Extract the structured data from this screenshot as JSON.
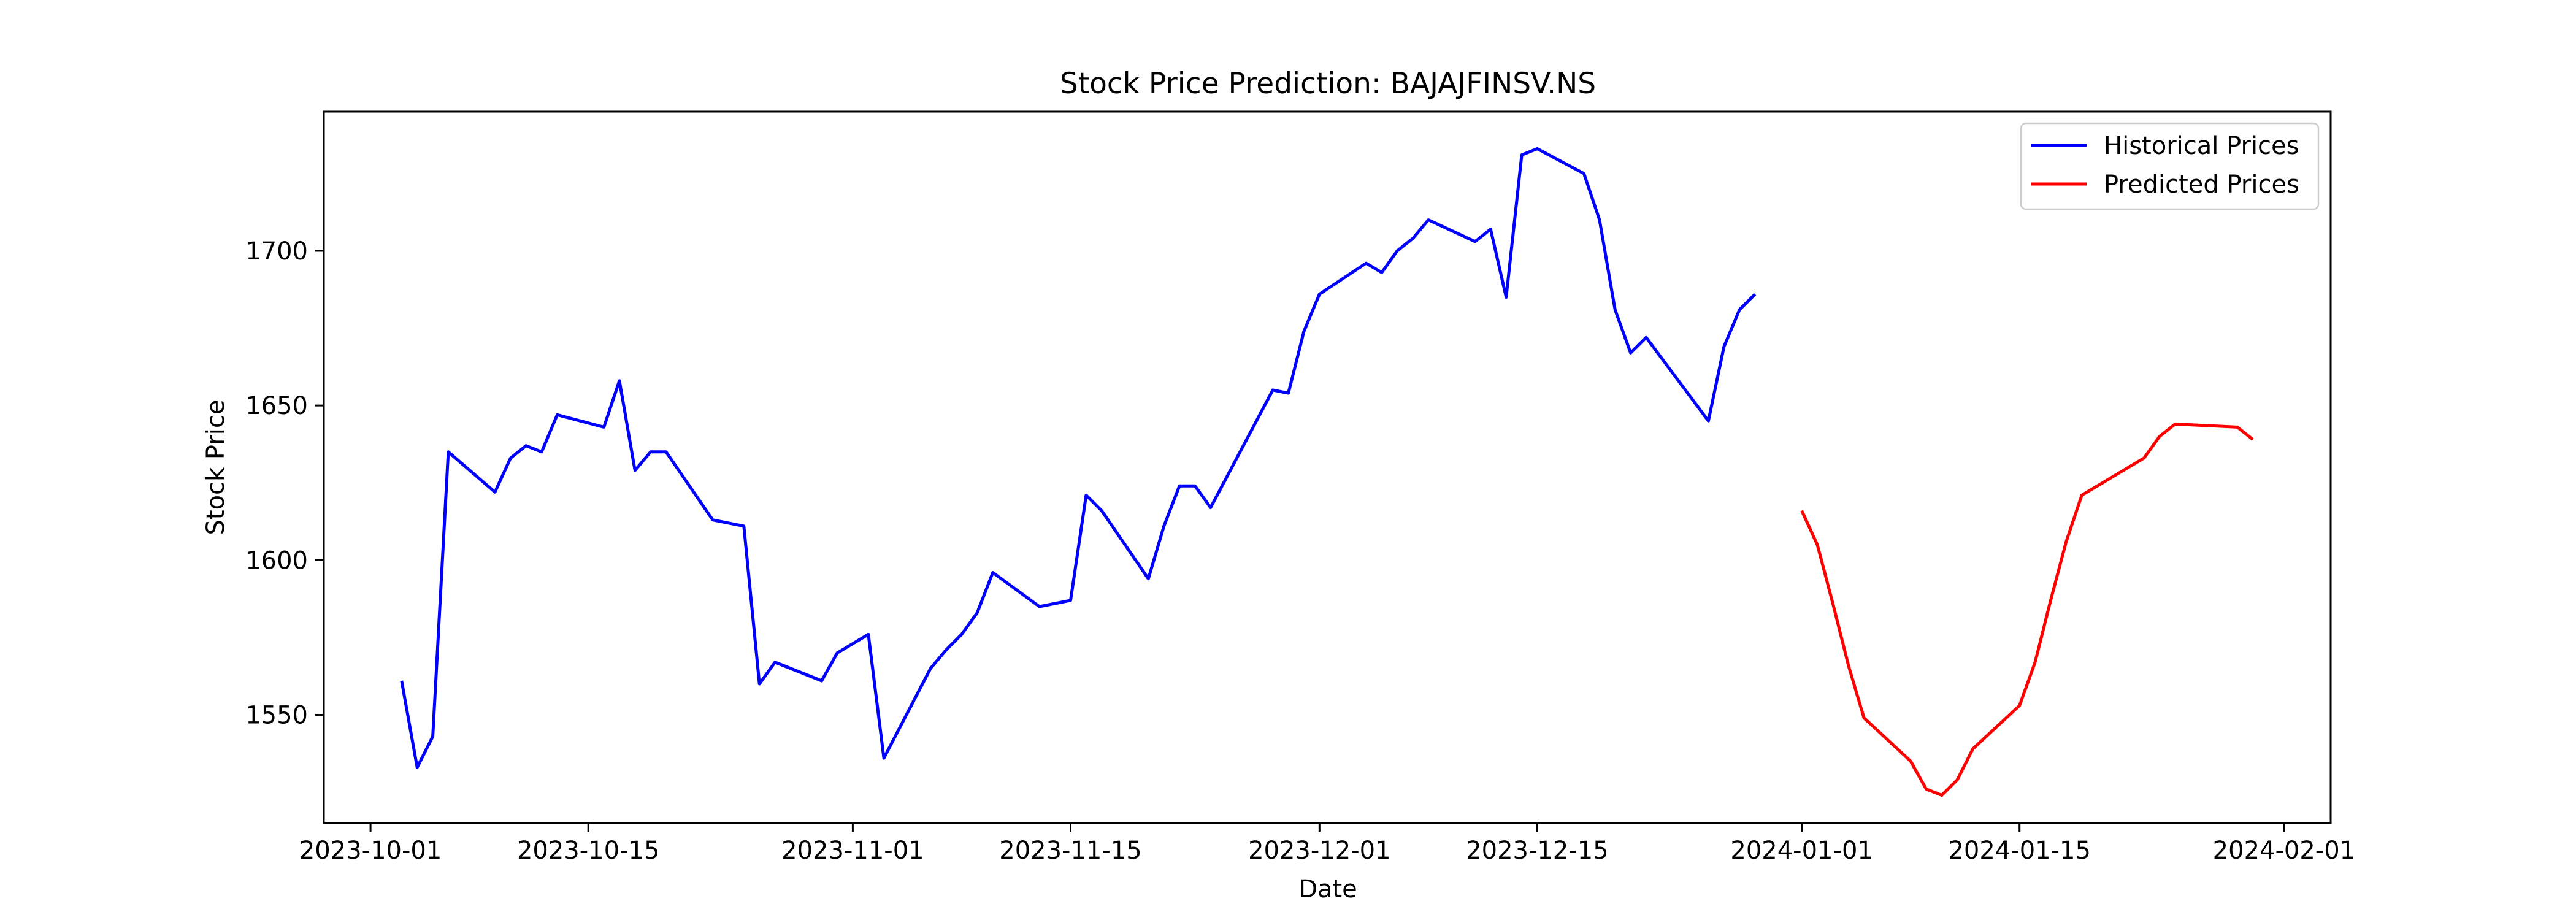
{
  "chart_data": {
    "type": "line",
    "title": "Stock Price Prediction: BAJAJFINSV.NS",
    "xlabel": "Date",
    "ylabel": "Stock Price",
    "xlim": [
      "2023-09-28",
      "2024-02-04"
    ],
    "ylim": [
      1515,
      1745
    ],
    "x_ticks": [
      "2023-10-01",
      "2023-10-15",
      "2023-11-01",
      "2023-11-15",
      "2023-12-01",
      "2023-12-15",
      "2024-01-01",
      "2024-01-15",
      "2024-02-01"
    ],
    "y_ticks": [
      1550,
      1600,
      1650,
      1700
    ],
    "grid": false,
    "legend_position": "top-right",
    "series": [
      {
        "name": "Historical Prices",
        "color": "#0000ff",
        "points": [
          [
            "2023-10-03",
            1561
          ],
          [
            "2023-10-04",
            1533
          ],
          [
            "2023-10-05",
            1543
          ],
          [
            "2023-10-06",
            1635
          ],
          [
            "2023-10-09",
            1622
          ],
          [
            "2023-10-10",
            1633
          ],
          [
            "2023-10-11",
            1637
          ],
          [
            "2023-10-12",
            1635
          ],
          [
            "2023-10-13",
            1647
          ],
          [
            "2023-10-16",
            1643
          ],
          [
            "2023-10-17",
            1658
          ],
          [
            "2023-10-18",
            1629
          ],
          [
            "2023-10-19",
            1635
          ],
          [
            "2023-10-20",
            1635
          ],
          [
            "2023-10-23",
            1613
          ],
          [
            "2023-10-25",
            1611
          ],
          [
            "2023-10-26",
            1560
          ],
          [
            "2023-10-27",
            1567
          ],
          [
            "2023-10-30",
            1561
          ],
          [
            "2023-10-31",
            1570
          ],
          [
            "2023-11-01",
            1573
          ],
          [
            "2023-11-02",
            1576
          ],
          [
            "2023-11-03",
            1536
          ],
          [
            "2023-11-06",
            1565
          ],
          [
            "2023-11-07",
            1571
          ],
          [
            "2023-11-08",
            1576
          ],
          [
            "2023-11-09",
            1583
          ],
          [
            "2023-11-10",
            1596
          ],
          [
            "2023-11-13",
            1585
          ],
          [
            "2023-11-15",
            1587
          ],
          [
            "2023-11-16",
            1621
          ],
          [
            "2023-11-17",
            1616
          ],
          [
            "2023-11-20",
            1594
          ],
          [
            "2023-11-21",
            1611
          ],
          [
            "2023-11-22",
            1624
          ],
          [
            "2023-11-23",
            1624
          ],
          [
            "2023-11-24",
            1617
          ],
          [
            "2023-11-28",
            1655
          ],
          [
            "2023-11-29",
            1654
          ],
          [
            "2023-11-30",
            1674
          ],
          [
            "2023-12-01",
            1686
          ],
          [
            "2023-12-04",
            1696
          ],
          [
            "2023-12-05",
            1693
          ],
          [
            "2023-12-06",
            1700
          ],
          [
            "2023-12-07",
            1704
          ],
          [
            "2023-12-08",
            1710
          ],
          [
            "2023-12-11",
            1703
          ],
          [
            "2023-12-12",
            1707
          ],
          [
            "2023-12-13",
            1685
          ],
          [
            "2023-12-14",
            1731
          ],
          [
            "2023-12-15",
            1733
          ],
          [
            "2023-12-18",
            1725
          ],
          [
            "2023-12-19",
            1710
          ],
          [
            "2023-12-20",
            1681
          ],
          [
            "2023-12-21",
            1667
          ],
          [
            "2023-12-22",
            1672
          ],
          [
            "2023-12-26",
            1645
          ],
          [
            "2023-12-27",
            1669
          ],
          [
            "2023-12-28",
            1681
          ],
          [
            "2023-12-29",
            1686
          ]
        ]
      },
      {
        "name": "Predicted Prices",
        "color": "#ff0000",
        "points": [
          [
            "2024-01-01",
            1616
          ],
          [
            "2024-01-02",
            1605
          ],
          [
            "2024-01-03",
            1586
          ],
          [
            "2024-01-04",
            1566
          ],
          [
            "2024-01-05",
            1549
          ],
          [
            "2024-01-08",
            1535
          ],
          [
            "2024-01-09",
            1526
          ],
          [
            "2024-01-10",
            1524
          ],
          [
            "2024-01-11",
            1529
          ],
          [
            "2024-01-12",
            1539
          ],
          [
            "2024-01-15",
            1553
          ],
          [
            "2024-01-16",
            1567
          ],
          [
            "2024-01-17",
            1587
          ],
          [
            "2024-01-18",
            1606
          ],
          [
            "2024-01-19",
            1621
          ],
          [
            "2024-01-22",
            1630
          ],
          [
            "2024-01-23",
            1633
          ],
          [
            "2024-01-24",
            1640
          ],
          [
            "2024-01-25",
            1644
          ],
          [
            "2024-01-29",
            1643
          ],
          [
            "2024-01-30",
            1639
          ]
        ]
      }
    ]
  }
}
